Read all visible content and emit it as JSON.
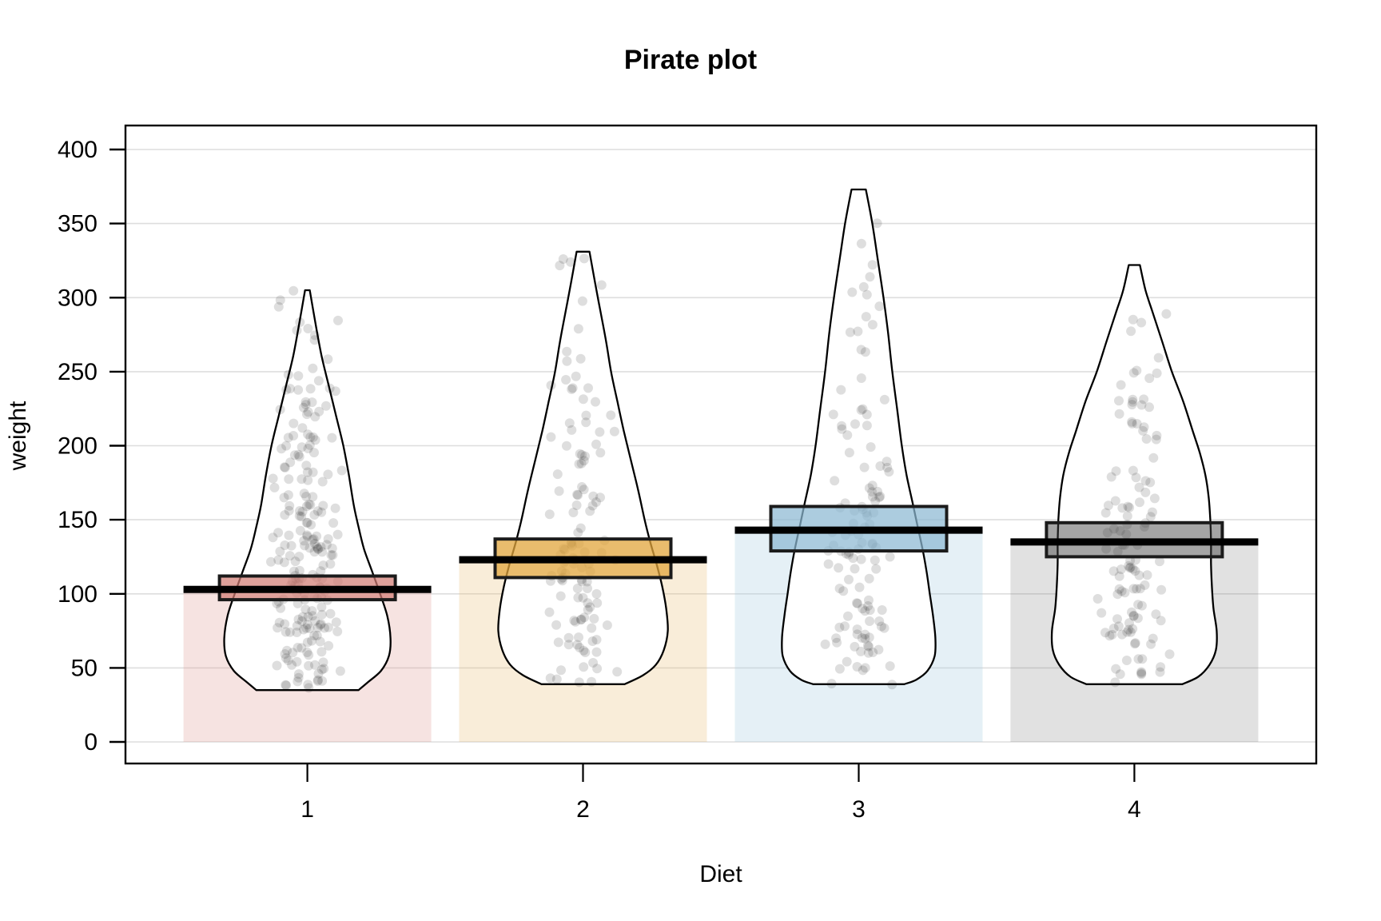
{
  "chart_data": {
    "type": "pirateplot (bar of mean + violin density + jittered raw points + inference box + mean line)",
    "title": "Pirate plot",
    "xlabel": "Diet",
    "ylabel": "weight",
    "x_categories": [
      "1",
      "2",
      "3",
      "4"
    ],
    "y_ticks": [
      0,
      50,
      100,
      150,
      200,
      250,
      300,
      350,
      400
    ],
    "ylim": [
      -15,
      416
    ],
    "grid": true,
    "grid_color": "#dedede",
    "point_color": "rgba(0,0,0,0.13)",
    "mean_line_color": "#000000",
    "box_border_color": "#1b1b1b",
    "violin_fill": "#ffffff",
    "violin_stroke": "#000000",
    "groups": [
      {
        "diet": "1",
        "n": 220,
        "mean": 103,
        "inference_band": [
          96,
          112
        ],
        "min": 35,
        "max": 305,
        "bar_color": "rgba(222,155,148,0.28)",
        "box_color": "rgba(211,125,116,0.72)",
        "violin_profile": [
          [
            305,
            0.019
          ],
          [
            280,
            0.071
          ],
          [
            260,
            0.116
          ],
          [
            240,
            0.174
          ],
          [
            220,
            0.232
          ],
          [
            200,
            0.29
          ],
          [
            180,
            0.335
          ],
          [
            160,
            0.374
          ],
          [
            145,
            0.413
          ],
          [
            130,
            0.458
          ],
          [
            115,
            0.523
          ],
          [
            100,
            0.587
          ],
          [
            85,
            0.645
          ],
          [
            70,
            0.671
          ],
          [
            58,
            0.658
          ],
          [
            48,
            0.594
          ],
          [
            40,
            0.484
          ],
          [
            35,
            0.413
          ]
        ]
      },
      {
        "diet": "2",
        "n": 120,
        "mean": 123,
        "inference_band": [
          111,
          137
        ],
        "min": 39,
        "max": 331,
        "bar_color": "rgba(233,185,110,0.26)",
        "box_color": "rgba(226,165,60,0.75)",
        "violin_profile": [
          [
            331,
            0.052
          ],
          [
            310,
            0.097
          ],
          [
            290,
            0.142
          ],
          [
            270,
            0.187
          ],
          [
            250,
            0.226
          ],
          [
            230,
            0.277
          ],
          [
            210,
            0.329
          ],
          [
            190,
            0.387
          ],
          [
            170,
            0.445
          ],
          [
            150,
            0.497
          ],
          [
            135,
            0.542
          ],
          [
            120,
            0.594
          ],
          [
            105,
            0.639
          ],
          [
            90,
            0.671
          ],
          [
            75,
            0.684
          ],
          [
            62,
            0.652
          ],
          [
            52,
            0.587
          ],
          [
            45,
            0.484
          ],
          [
            39,
            0.335
          ]
        ]
      },
      {
        "diet": "3",
        "n": 120,
        "mean": 143,
        "inference_band": [
          129,
          159
        ],
        "min": 39,
        "max": 373,
        "bar_color": "rgba(168,206,224,0.30)",
        "box_color": "rgba(140,185,210,0.72)",
        "violin_profile": [
          [
            373,
            0.058
          ],
          [
            350,
            0.11
          ],
          [
            325,
            0.155
          ],
          [
            300,
            0.2
          ],
          [
            275,
            0.239
          ],
          [
            250,
            0.271
          ],
          [
            225,
            0.31
          ],
          [
            200,
            0.348
          ],
          [
            180,
            0.387
          ],
          [
            160,
            0.439
          ],
          [
            145,
            0.477
          ],
          [
            130,
            0.516
          ],
          [
            115,
            0.548
          ],
          [
            100,
            0.574
          ],
          [
            85,
            0.6
          ],
          [
            70,
            0.619
          ],
          [
            58,
            0.613
          ],
          [
            48,
            0.555
          ],
          [
            42,
            0.465
          ],
          [
            39,
            0.368
          ]
        ]
      },
      {
        "diet": "4",
        "n": 118,
        "mean": 135,
        "inference_band": [
          125,
          148
        ],
        "min": 39,
        "max": 322,
        "bar_color": "rgba(120,120,120,0.22)",
        "box_color": "rgba(64,64,64,0.47)",
        "violin_profile": [
          [
            322,
            0.045
          ],
          [
            305,
            0.09
          ],
          [
            290,
            0.148
          ],
          [
            270,
            0.226
          ],
          [
            250,
            0.303
          ],
          [
            230,
            0.394
          ],
          [
            210,
            0.471
          ],
          [
            195,
            0.529
          ],
          [
            180,
            0.574
          ],
          [
            165,
            0.6
          ],
          [
            150,
            0.613
          ],
          [
            135,
            0.619
          ],
          [
            120,
            0.619
          ],
          [
            105,
            0.626
          ],
          [
            90,
            0.639
          ],
          [
            75,
            0.665
          ],
          [
            62,
            0.658
          ],
          [
            52,
            0.606
          ],
          [
            44,
            0.516
          ],
          [
            39,
            0.387
          ]
        ]
      }
    ]
  }
}
